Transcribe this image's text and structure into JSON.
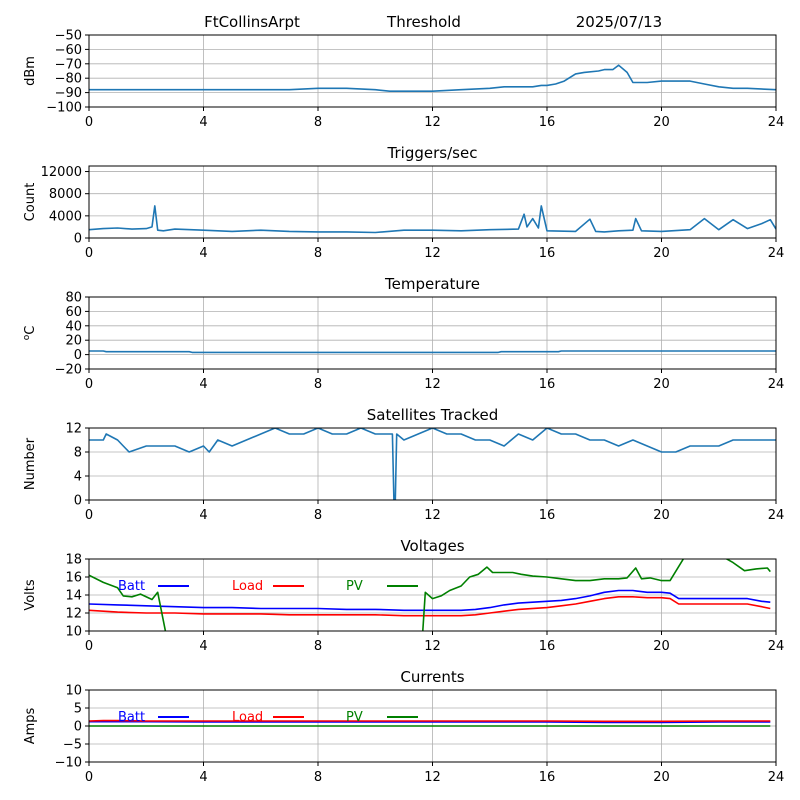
{
  "header": {
    "station": "FtCollinsArpt",
    "mode": "Threshold",
    "date": "2025/07/13"
  },
  "chart_data": [
    {
      "type": "line",
      "title": "",
      "xlabel": "",
      "ylabel": "dBm",
      "xlim": [
        0,
        24
      ],
      "ylim": [
        -100,
        -50
      ],
      "xticks": [
        0,
        4,
        8,
        12,
        16,
        20,
        24
      ],
      "yticks": [
        -100,
        -90,
        -80,
        -70,
        -60,
        -50
      ],
      "grid": true,
      "series": [
        {
          "color": "#1f77b4",
          "x": [
            0,
            1,
            2,
            3,
            4,
            5,
            6,
            7,
            8,
            9,
            10,
            10.5,
            11,
            12,
            13,
            14,
            14.5,
            15,
            15.5,
            15.8,
            16,
            16.3,
            16.6,
            17,
            17.3,
            17.8,
            18,
            18.3,
            18.5,
            18.8,
            19,
            19.5,
            20,
            20.5,
            21,
            21.5,
            22,
            22.5,
            23,
            24
          ],
          "values": [
            -88,
            -88,
            -88,
            -88,
            -88,
            -88,
            -88,
            -88,
            -87,
            -87,
            -88,
            -89,
            -89,
            -89,
            -88,
            -87,
            -86,
            -86,
            -86,
            -85,
            -85,
            -84,
            -82,
            -77,
            -76,
            -75,
            -74,
            -74,
            -71,
            -76,
            -83,
            -83,
            -82,
            -82,
            -82,
            -84,
            -86,
            -87,
            -87,
            -88
          ]
        }
      ]
    },
    {
      "type": "line",
      "title": "Triggers/sec",
      "xlabel": "",
      "ylabel": "Count",
      "xlim": [
        0,
        24
      ],
      "ylim": [
        0,
        13000
      ],
      "xticks": [
        0,
        4,
        8,
        12,
        16,
        20,
        24
      ],
      "yticks": [
        0,
        4000,
        8000,
        12000
      ],
      "grid": true,
      "series": [
        {
          "color": "#1f77b4",
          "x": [
            0,
            0.5,
            1,
            1.5,
            2,
            2.2,
            2.3,
            2.4,
            2.6,
            3,
            4,
            5,
            6,
            7,
            8,
            9,
            10,
            11,
            12,
            13,
            14,
            15,
            15.2,
            15.3,
            15.5,
            15.7,
            15.8,
            16,
            17,
            17.5,
            17.7,
            18,
            18.5,
            19,
            19.1,
            19.3,
            20,
            21,
            21.5,
            22,
            22.5,
            23,
            23.5,
            23.8,
            24
          ],
          "values": [
            1500,
            1700,
            1800,
            1600,
            1700,
            2000,
            5800,
            1400,
            1300,
            1600,
            1400,
            1200,
            1400,
            1200,
            1100,
            1100,
            1000,
            1400,
            1400,
            1300,
            1500,
            1600,
            4300,
            2000,
            3500,
            1800,
            5800,
            1300,
            1200,
            3400,
            1200,
            1100,
            1300,
            1400,
            3500,
            1300,
            1200,
            1500,
            3500,
            1500,
            3300,
            1700,
            2600,
            3300,
            1600
          ]
        }
      ]
    },
    {
      "type": "line",
      "title": "Temperature",
      "xlabel": "",
      "ylabel": "°C",
      "xlim": [
        0,
        24
      ],
      "ylim": [
        -20,
        80
      ],
      "xticks": [
        0,
        4,
        8,
        12,
        16,
        20,
        24
      ],
      "yticks": [
        -20,
        0,
        20,
        40,
        60,
        80
      ],
      "grid": true,
      "series": [
        {
          "color": "#1f77b4",
          "x": [
            0,
            0.5,
            0.6,
            3.5,
            3.6,
            14.3,
            14.4,
            16.4,
            16.5,
            24
          ],
          "values": [
            5,
            5,
            4,
            4,
            3,
            3,
            4,
            4,
            5,
            5
          ]
        }
      ]
    },
    {
      "type": "line",
      "title": "Satellites Tracked",
      "xlabel": "",
      "ylabel": "Number",
      "xlim": [
        0,
        24
      ],
      "ylim": [
        0,
        12
      ],
      "xticks": [
        0,
        4,
        8,
        12,
        16,
        20,
        24
      ],
      "yticks": [
        0,
        4,
        8,
        12
      ],
      "grid": true,
      "series": [
        {
          "color": "#1f77b4",
          "x": [
            0,
            0.5,
            0.6,
            1,
            1.2,
            1.4,
            2,
            2.5,
            3,
            3.5,
            4,
            4.2,
            4.5,
            5,
            5.5,
            6,
            6.5,
            7,
            7.5,
            8,
            8.5,
            9,
            9.5,
            10,
            10.6,
            10.65,
            10.7,
            10.75,
            11,
            11.5,
            12,
            12.5,
            13,
            13.5,
            14,
            14.5,
            15,
            15.5,
            16,
            16.5,
            17,
            17.5,
            18,
            18.5,
            19,
            19.5,
            20,
            20.5,
            21,
            21.5,
            22,
            22.5,
            23,
            23.5,
            24
          ],
          "values": [
            10,
            10,
            11,
            10,
            9,
            8,
            9,
            9,
            9,
            8,
            9,
            8,
            10,
            9,
            10,
            11,
            12,
            11,
            11,
            12,
            11,
            11,
            12,
            11,
            11,
            0,
            0,
            11,
            10,
            11,
            12,
            11,
            11,
            10,
            10,
            9,
            11,
            10,
            12,
            11,
            11,
            10,
            10,
            9,
            10,
            9,
            8,
            8,
            9,
            9,
            9,
            10,
            10,
            10,
            10
          ]
        }
      ]
    },
    {
      "type": "line",
      "title": "Voltages",
      "xlabel": "",
      "ylabel": "Volts",
      "xlim": [
        0,
        24
      ],
      "ylim": [
        10,
        18
      ],
      "xticks": [
        0,
        4,
        8,
        12,
        16,
        20,
        24
      ],
      "yticks": [
        10,
        12,
        14,
        16,
        18
      ],
      "grid": true,
      "series": [
        {
          "name": "Batt",
          "color": "#0000ff",
          "x": [
            0,
            1,
            2,
            3,
            4,
            5,
            6,
            7,
            8,
            9,
            10,
            11,
            12,
            13,
            13.5,
            14,
            14.5,
            15,
            16,
            16.5,
            17,
            17.5,
            18,
            18.5,
            19,
            19.5,
            20,
            20.3,
            20.6,
            21,
            22,
            22.5,
            23,
            23.5,
            23.8
          ],
          "values": [
            13.0,
            12.9,
            12.8,
            12.7,
            12.6,
            12.6,
            12.5,
            12.5,
            12.5,
            12.4,
            12.4,
            12.3,
            12.3,
            12.3,
            12.4,
            12.6,
            12.9,
            13.1,
            13.3,
            13.4,
            13.6,
            13.9,
            14.3,
            14.5,
            14.5,
            14.3,
            14.3,
            14.2,
            13.6,
            13.6,
            13.6,
            13.6,
            13.6,
            13.3,
            13.2
          ]
        },
        {
          "name": "Load",
          "color": "#ff0000",
          "x": [
            0,
            1,
            2,
            3,
            4,
            5,
            6,
            7,
            8,
            9,
            10,
            11,
            12,
            13,
            13.5,
            14,
            14.5,
            15,
            16,
            16.5,
            17,
            17.5,
            18,
            18.5,
            19,
            19.5,
            20,
            20.3,
            20.6,
            21,
            22,
            22.5,
            23,
            23.5,
            23.8
          ],
          "values": [
            12.3,
            12.1,
            12.0,
            12.0,
            11.9,
            11.9,
            11.9,
            11.8,
            11.8,
            11.8,
            11.8,
            11.7,
            11.7,
            11.7,
            11.8,
            12.0,
            12.2,
            12.4,
            12.6,
            12.8,
            13.0,
            13.3,
            13.6,
            13.8,
            13.8,
            13.7,
            13.7,
            13.6,
            13.0,
            13.0,
            13.0,
            13.0,
            13.0,
            12.7,
            12.5
          ]
        },
        {
          "name": "PV",
          "color": "#008000",
          "x": [
            0,
            0.5,
            1,
            1.2,
            1.5,
            1.8,
            2.2,
            2.4,
            2.7,
            11.65,
            11.75,
            12,
            12.3,
            12.6,
            13,
            13.3,
            13.6,
            13.9,
            14.1,
            14.4,
            14.8,
            15.1,
            15.5,
            16,
            16.5,
            17,
            17.5,
            18,
            18.5,
            18.8,
            19.1,
            19.3,
            19.6,
            20,
            20.3,
            20.8,
            21,
            21.3,
            22,
            22.5,
            22.9,
            23.3,
            23.7,
            23.8
          ],
          "values": [
            16.2,
            15.4,
            14.8,
            13.9,
            13.8,
            14.1,
            13.5,
            14.3,
            9.5,
            9.5,
            14.3,
            13.6,
            13.9,
            14.5,
            15.0,
            16.0,
            16.3,
            17.1,
            16.5,
            16.5,
            16.5,
            16.3,
            16.1,
            16.0,
            15.8,
            15.6,
            15.6,
            15.8,
            15.8,
            15.9,
            17.0,
            15.8,
            15.9,
            15.6,
            15.6,
            18.2,
            18.6,
            18.6,
            18.5,
            17.6,
            16.7,
            16.9,
            17.0,
            16.6
          ]
        }
      ],
      "legend": "inside upper-left, horizontal"
    },
    {
      "type": "line",
      "title": "Currents",
      "xlabel": "",
      "ylabel": "Amps",
      "xlim": [
        0,
        24
      ],
      "ylim": [
        -10,
        10
      ],
      "xticks": [
        0,
        4,
        8,
        12,
        16,
        20,
        24
      ],
      "yticks": [
        -10,
        -5,
        0,
        5,
        10
      ],
      "grid": true,
      "series": [
        {
          "name": "Batt",
          "color": "#0000ff",
          "x": [
            0,
            2,
            4,
            6,
            8,
            10,
            12,
            14,
            16,
            18,
            20,
            22,
            23.8
          ],
          "values": [
            1.2,
            1.2,
            1.1,
            1.1,
            1.1,
            1.1,
            1.1,
            1.1,
            1.1,
            1.0,
            1.0,
            1.1,
            1.1
          ]
        },
        {
          "name": "Load",
          "color": "#ff0000",
          "x": [
            0,
            0.5,
            1,
            2,
            4,
            6,
            8,
            10,
            12,
            14,
            16,
            18,
            20,
            22,
            23.8
          ],
          "values": [
            1.4,
            1.5,
            1.5,
            1.4,
            1.4,
            1.4,
            1.4,
            1.4,
            1.4,
            1.4,
            1.4,
            1.3,
            1.3,
            1.4,
            1.4
          ]
        },
        {
          "name": "PV",
          "color": "#008000",
          "x": [
            0,
            4,
            8,
            12,
            16,
            20,
            23.8
          ],
          "values": [
            0,
            0,
            0,
            0,
            0,
            0,
            0
          ]
        }
      ],
      "legend": "inside upper-left, horizontal"
    }
  ]
}
